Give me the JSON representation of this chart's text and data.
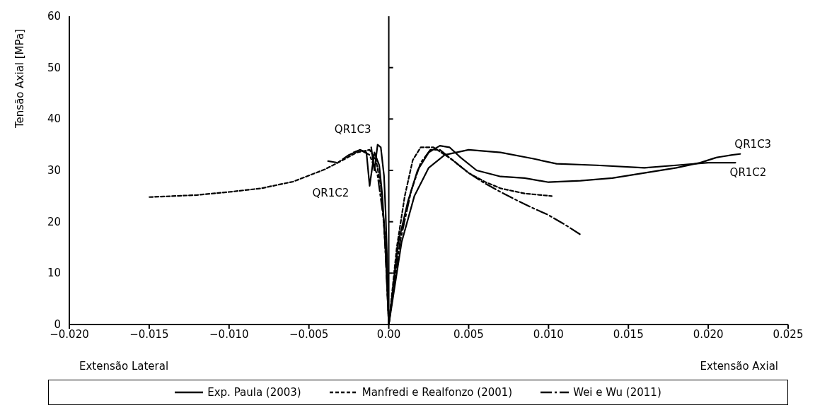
{
  "chart_data": {
    "type": "line",
    "ylabel": "Tensão Axial [MPa]",
    "xlabel": "Extensão Axial",
    "xlim": [
      -0.02,
      0.025
    ],
    "ylim": [
      0,
      60
    ],
    "xticks": [
      {
        "value": -0.02,
        "label": "−0.020"
      },
      {
        "value": -0.015,
        "label": "−0.015"
      },
      {
        "value": -0.01,
        "label": "−0.010"
      },
      {
        "value": -0.005,
        "label": "−0.005"
      },
      {
        "value": 0,
        "label": "0.00"
      },
      {
        "value": 0.005,
        "label": "0.005"
      },
      {
        "value": 0.01,
        "label": "0.010"
      },
      {
        "value": 0.015,
        "label": "0.015"
      },
      {
        "value": 0.02,
        "label": "0.020"
      },
      {
        "value": 0.025,
        "label": "0.025"
      }
    ],
    "yticks": [
      0,
      10,
      20,
      30,
      40,
      50,
      60
    ],
    "grid": false,
    "legend": "bottom",
    "marker": "none",
    "ref_lines": [
      {
        "axis": "x",
        "value": 0
      }
    ],
    "annotations": [
      "Extensão Lateral",
      {
        "text": "QR1C3",
        "x": -0.0007,
        "y": 35
      },
      {
        "text": "QR1C2",
        "x": -0.0012,
        "y": 27
      },
      {
        "text": "QR1C3",
        "x": 0.022,
        "y": 33.2
      },
      {
        "text": "QR1C2",
        "x": 0.0217,
        "y": 31.5
      }
    ],
    "series": [
      {
        "name": "Exp. Paula (2003)",
        "color": "#000000",
        "line_style": "solid",
        "x": [
          0,
          0.0006,
          0.0012,
          0.0018,
          0.0025,
          0.0032,
          0.0038,
          0.0045,
          0.0055,
          0.007,
          0.0085,
          0.01,
          0.012,
          0.014,
          0.016,
          0.018,
          0.0195,
          0.0205,
          0.0215,
          0.022
        ],
        "values": [
          0,
          16,
          24,
          30,
          33.5,
          34.8,
          34.5,
          32.5,
          30,
          28.8,
          28.5,
          27.7,
          28,
          28.5,
          29.5,
          30.5,
          31.5,
          32.5,
          33,
          33.2
        ]
      },
      {
        "color": "#000000",
        "line_style": "solid",
        "x": [
          0,
          0.0008,
          0.0016,
          0.0025,
          0.0035,
          0.005,
          0.007,
          0.009,
          0.0105,
          0.013,
          0.016,
          0.018,
          0.02,
          0.0217
        ],
        "values": [
          0,
          16,
          25,
          30.5,
          33,
          34,
          33.5,
          32.3,
          31.3,
          31,
          30.5,
          31,
          31.5,
          31.5
        ]
      },
      {
        "color": "#000000",
        "line_style": "solid",
        "x": [
          0,
          -0.0002,
          -0.0004,
          -0.0006,
          -0.0009,
          -0.0012,
          -0.0014,
          -0.0018,
          -0.0022
        ],
        "values": [
          0,
          14,
          25,
          31,
          33.5,
          27,
          33.5,
          34,
          33.5
        ]
      },
      {
        "color": "#000000",
        "line_style": "solid",
        "x": [
          0,
          -0.0001,
          -0.0002,
          -0.0003,
          -0.0005,
          -0.0007,
          -0.0009,
          -0.0011
        ],
        "values": [
          0,
          12,
          22,
          29,
          34.5,
          35,
          30,
          34.5
        ]
      },
      {
        "name": "Manfredi e Realfonzo (2001)",
        "color": "#000000",
        "line_style": "dotted",
        "x": [
          0,
          0.0005,
          0.001,
          0.0015,
          0.002,
          0.0028,
          0.004,
          0.005,
          0.006,
          0.007,
          0.0085,
          0.0102
        ],
        "values": [
          0,
          15,
          25,
          32,
          34.5,
          34.5,
          32,
          29.5,
          27.8,
          26.5,
          25.5,
          25
        ]
      },
      {
        "color": "#000000",
        "line_style": "dotted",
        "x": [
          0,
          -0.0002,
          -0.0005,
          -0.0008,
          -0.0012,
          -0.002,
          -0.003,
          -0.004,
          -0.005,
          -0.006,
          -0.008,
          -0.01,
          -0.012,
          -0.015
        ],
        "values": [
          0,
          15,
          27,
          32,
          34,
          33.5,
          31.8,
          30.2,
          29,
          27.8,
          26.5,
          25.8,
          25.2,
          24.8
        ]
      },
      {
        "name": "Wei e Wu (2011)",
        "color": "#000000",
        "line_style": "dashed",
        "x": [
          0,
          0.0007,
          0.0014,
          0.002,
          0.0026,
          0.0032,
          0.004,
          0.005,
          0.006,
          0.007,
          0.008,
          0.009,
          0.01,
          0.011,
          0.0121
        ],
        "values": [
          0,
          16,
          26,
          31.5,
          34,
          34,
          32,
          29.5,
          27.5,
          25.8,
          24.2,
          22.7,
          21.3,
          19.5,
          17.3
        ]
      },
      {
        "color": "#000000",
        "line_style": "dashed",
        "x": [
          0,
          -0.0003,
          -0.0007,
          -0.0012,
          -0.0018,
          -0.0025,
          -0.0032,
          -0.0038
        ],
        "values": [
          0,
          20,
          29,
          33,
          34,
          33,
          31.5,
          31.8
        ]
      }
    ]
  }
}
